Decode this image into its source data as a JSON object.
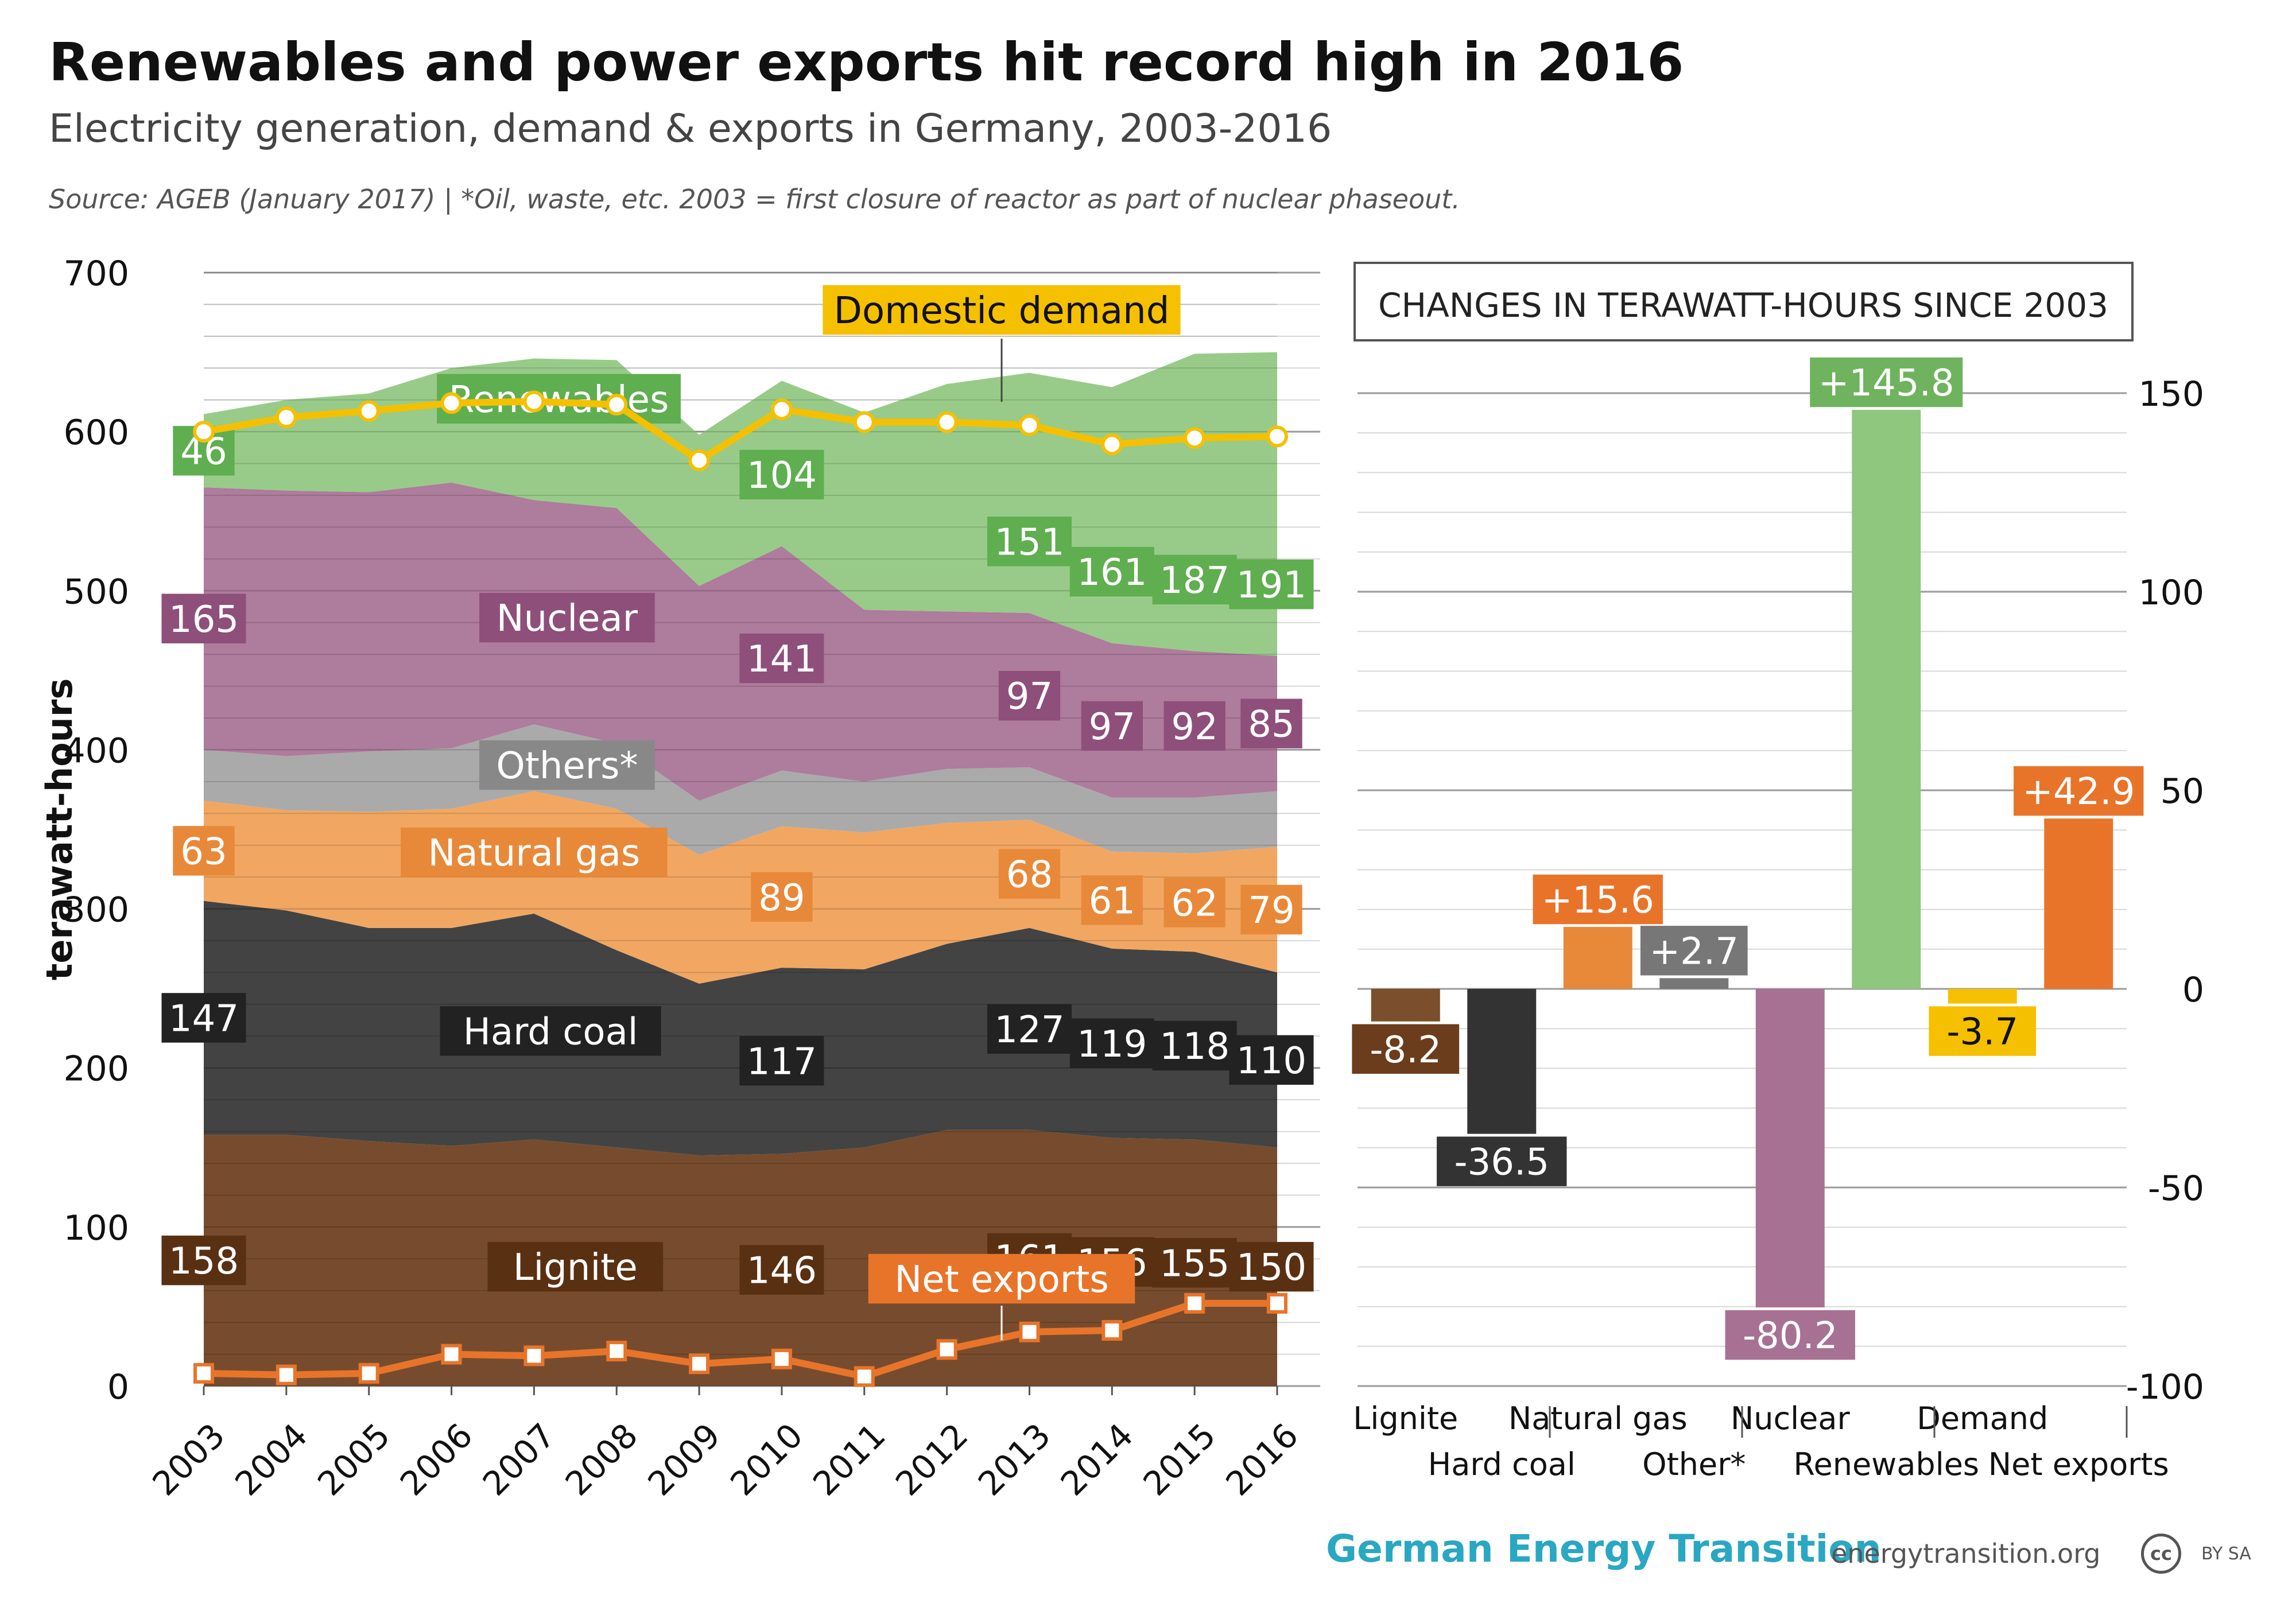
{
  "header": {
    "title": "Renewables and power exports hit record high in 2016",
    "subtitle": "Electricity generation, demand & exports in Germany, 2003-2016",
    "source": "Source: AGEB (January 2017) | *Oil, waste, etc. 2003 = first closure of reactor as part of nuclear phaseout."
  },
  "footer": {
    "brand": "German Energy Transition",
    "site": "energytransition.org",
    "cc": "cc",
    "license": "BY SA"
  },
  "colors": {
    "lignite": "#6b3d1c",
    "hard_coal": "#333333",
    "natural_gas": "#f0a055",
    "others": "#a3a3a3",
    "nuclear": "#a77194",
    "renewables": "#8fc77f",
    "demand": "#f5c000",
    "net_exports": "#e8742a"
  },
  "chart_data": [
    {
      "type": "area",
      "x": [
        2003,
        2004,
        2005,
        2006,
        2007,
        2008,
        2009,
        2010,
        2011,
        2012,
        2013,
        2014,
        2015,
        2016
      ],
      "ylabel": "terawatt-hours",
      "ylim": [
        0,
        700
      ],
      "yticks": [
        0,
        100,
        200,
        300,
        400,
        500,
        600,
        700
      ],
      "grid": true,
      "stack_order": [
        "Lignite",
        "Hard coal",
        "Natural gas",
        "Others*",
        "Nuclear",
        "Renewables"
      ],
      "series": [
        {
          "name": "Lignite",
          "key": "lignite",
          "values": [
            158,
            158,
            154,
            151,
            155,
            150,
            145,
            146,
            150,
            161,
            161,
            156,
            155,
            150
          ],
          "labels": [
            {
              "year": 2003,
              "text": "158"
            },
            {
              "year": 2010,
              "text": "146"
            },
            {
              "year": 2013,
              "text": "161"
            },
            {
              "year": 2014,
              "text": "156"
            },
            {
              "year": 2015,
              "text": "155"
            },
            {
              "year": 2016,
              "text": "150"
            }
          ]
        },
        {
          "name": "Hard coal",
          "key": "hard_coal",
          "values": [
            147,
            141,
            134,
            137,
            142,
            124,
            108,
            117,
            112,
            117,
            127,
            119,
            118,
            110
          ],
          "labels": [
            {
              "year": 2003,
              "text": "147"
            },
            {
              "year": 2010,
              "text": "117"
            },
            {
              "year": 2013,
              "text": "127"
            },
            {
              "year": 2014,
              "text": "119"
            },
            {
              "year": 2015,
              "text": "118"
            },
            {
              "year": 2016,
              "text": "110"
            }
          ]
        },
        {
          "name": "Natural gas",
          "key": "natural_gas",
          "values": [
            63,
            63,
            73,
            75,
            77,
            89,
            81,
            89,
            86,
            76,
            68,
            61,
            62,
            79
          ],
          "labels": [
            {
              "year": 2003,
              "text": "63"
            },
            {
              "year": 2010,
              "text": "89"
            },
            {
              "year": 2013,
              "text": "68"
            },
            {
              "year": 2014,
              "text": "61"
            },
            {
              "year": 2015,
              "text": "62"
            },
            {
              "year": 2016,
              "text": "79"
            }
          ]
        },
        {
          "name": "Others*",
          "key": "others",
          "values": [
            32,
            34,
            38,
            38,
            42,
            41,
            34,
            35,
            32,
            34,
            33,
            34,
            35,
            35
          ],
          "labels": []
        },
        {
          "name": "Nuclear",
          "key": "nuclear",
          "values": [
            165,
            167,
            163,
            167,
            141,
            148,
            135,
            141,
            108,
            99,
            97,
            97,
            92,
            85
          ],
          "labels": [
            {
              "year": 2003,
              "text": "165"
            },
            {
              "year": 2010,
              "text": "141"
            },
            {
              "year": 2013,
              "text": "97"
            },
            {
              "year": 2014,
              "text": "97"
            },
            {
              "year": 2015,
              "text": "92"
            },
            {
              "year": 2016,
              "text": "85"
            }
          ]
        },
        {
          "name": "Renewables",
          "key": "renewables",
          "values": [
            46,
            57,
            62,
            72,
            89,
            93,
            95,
            104,
            124,
            143,
            151,
            161,
            187,
            191
          ],
          "labels": [
            {
              "year": 2003,
              "text": "46"
            },
            {
              "year": 2010,
              "text": "104"
            },
            {
              "year": 2013,
              "text": "151"
            },
            {
              "year": 2014,
              "text": "161"
            },
            {
              "year": 2015,
              "text": "187"
            },
            {
              "year": 2016,
              "text": "191"
            }
          ]
        }
      ],
      "lines": [
        {
          "name": "Domestic demand",
          "key": "demand",
          "marker": "circle",
          "values": [
            600,
            609,
            613,
            618,
            619,
            617,
            582,
            614,
            606,
            606,
            604,
            592,
            596,
            597
          ]
        },
        {
          "name": "Net exports",
          "key": "net_exports",
          "marker": "square",
          "values": [
            8,
            7,
            8,
            20,
            19,
            22,
            14,
            17,
            6,
            23,
            34,
            35,
            52,
            52
          ]
        }
      ]
    },
    {
      "type": "bar",
      "title": "CHANGES IN TERAWATT-HOURS SINCE 2003",
      "ylim": [
        -100,
        150
      ],
      "yticks": [
        -100,
        -50,
        0,
        50,
        100,
        150
      ],
      "categories": [
        "Lignite",
        "Hard coal",
        "Natural gas",
        "Other*",
        "Nuclear",
        "Renewables",
        "Demand",
        "Net exports"
      ],
      "values": [
        -8.2,
        -36.5,
        15.6,
        2.7,
        -80.2,
        145.8,
        -3.7,
        42.9
      ],
      "value_labels": [
        "-8.2",
        "-36.5",
        "+15.6",
        "+2.7",
        "-80.2",
        "+145.8",
        "-3.7",
        "+42.9"
      ],
      "bar_colors": [
        "#7b4f2c",
        "#333333",
        "#e8893a",
        "#777777",
        "#a77194",
        "#8fc77f",
        "#f5c000",
        "#e8742a"
      ],
      "label_colors": [
        "#6b3d1c",
        "#333333",
        "#e8742a",
        "#777777",
        "#a77194",
        "#6fb35f",
        "#f5c000",
        "#e8742a"
      ]
    }
  ]
}
